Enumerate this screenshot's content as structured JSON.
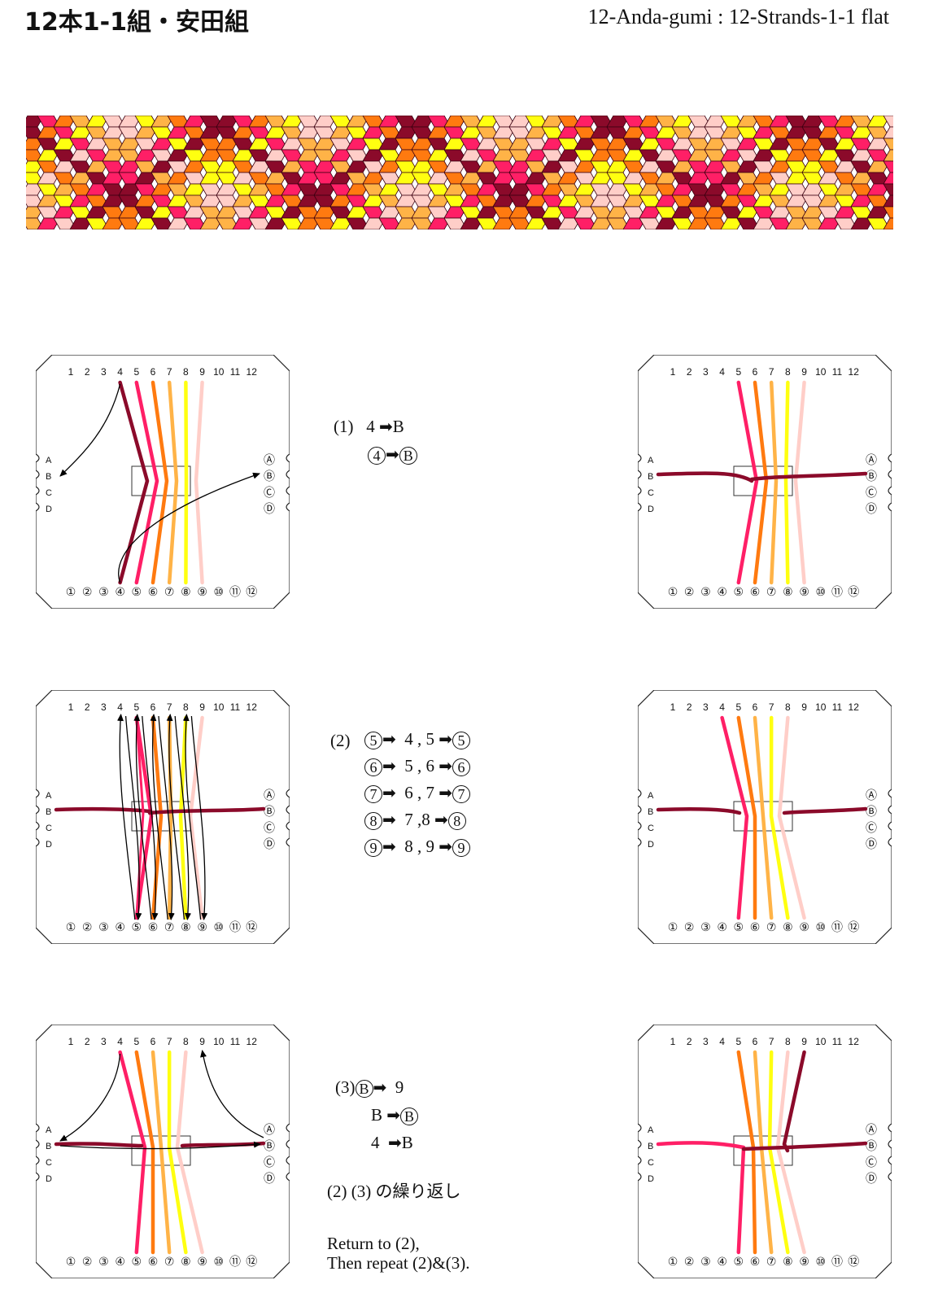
{
  "title_jp": "12本1-1組・安田組",
  "title_en": "12-Anda-gumi : 12-Strands-1-1 flat",
  "colors": {
    "maroon": "#8b0a2a",
    "pink": "#ff1f66",
    "orange": "#ff7a10",
    "light_orange": "#ffb347",
    "yellow": "#ffff10",
    "light_pink": "#ffcec8",
    "arrow": "#000000"
  },
  "board": {
    "top_labels": [
      "1",
      "2",
      "3",
      "4",
      "5",
      "6",
      "7",
      "8",
      "9",
      "10",
      "11",
      "12"
    ],
    "bottom_labels": [
      "①",
      "②",
      "③",
      "④",
      "⑤",
      "⑥",
      "⑦",
      "⑧",
      "⑨",
      "⑩",
      "⑪",
      "⑫"
    ],
    "left_labels": [
      "A",
      "B",
      "C",
      "D"
    ],
    "right_labels": [
      "Ⓐ",
      "Ⓑ",
      "Ⓒ",
      "Ⓓ"
    ]
  },
  "steps": {
    "s1": {
      "num": "(1)",
      "l1_from": "4",
      "l1_to": "B",
      "l2_from": "4",
      "l2_to": "B"
    },
    "s2": {
      "num": "(2)",
      "rows": [
        {
          "a": "5",
          "b": "4 , 5",
          "c": "5"
        },
        {
          "a": "6",
          "b": "5 , 6",
          "c": "6"
        },
        {
          "a": "7",
          "b": "6 , 7",
          "c": "7"
        },
        {
          "a": "8",
          "b": "7 ,8",
          "c": "8"
        },
        {
          "a": "9",
          "b": "8 , 9",
          "c": "9"
        }
      ]
    },
    "s3": {
      "num": "(3)",
      "l1_from": "B",
      "l1_to": "9",
      "l2_from": "B",
      "l2_to": "B",
      "l3_from": "4",
      "l3_to": "B",
      "repeat_jp": "(2) (3) の繰り返し",
      "repeat_en_1": "Return to (2),",
      "repeat_en_2": "Then repeat (2)&(3)."
    }
  }
}
